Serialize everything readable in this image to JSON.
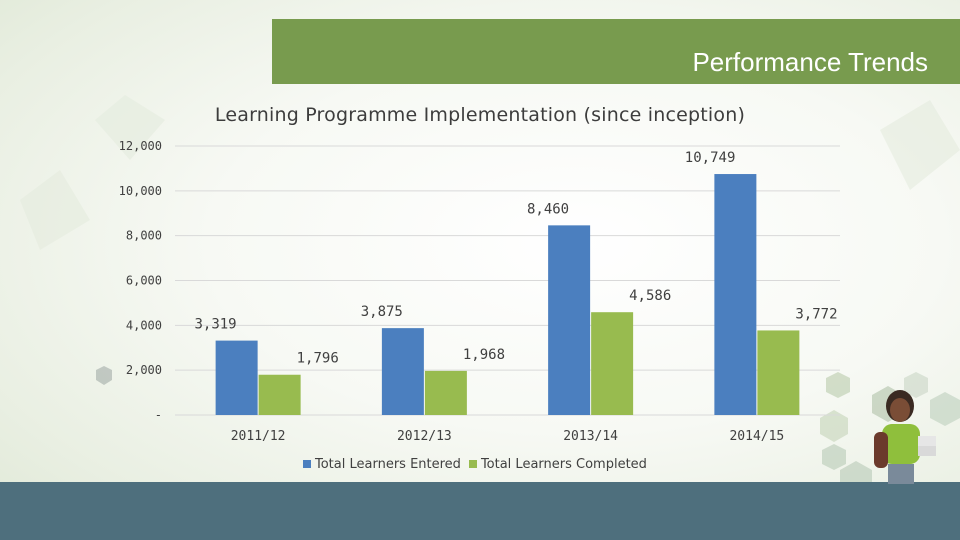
{
  "header": {
    "title": "Performance Trends"
  },
  "colors": {
    "banner": "#789b4e",
    "bottom_bar": "#4e6f7d",
    "entered": "#4b7fbf",
    "completed": "#98bb4f"
  },
  "chart_data": {
    "type": "bar",
    "title": "Learning Programme Implementation (since inception)",
    "xlabel": "",
    "ylabel": "",
    "categories": [
      "2011/12",
      "2012/13",
      "2013/14",
      "2014/15"
    ],
    "series": [
      {
        "name": "Total Learners Entered",
        "values": [
          3319,
          3875,
          8460,
          10749
        ],
        "labels": [
          "3,319",
          "3,875",
          "8,460",
          "10,749"
        ],
        "color": "#4b7fbf"
      },
      {
        "name": "Total Learners Completed",
        "values": [
          1796,
          1968,
          4586,
          3772
        ],
        "labels": [
          "1,796",
          "1,968",
          "4,586",
          "3,772"
        ],
        "color": "#98bb4f"
      }
    ],
    "ylim": [
      0,
      12000
    ],
    "yticks": [
      0,
      2000,
      4000,
      6000,
      8000,
      10000,
      12000
    ],
    "ytick_labels": [
      "-",
      "2,000",
      "4,000",
      "6,000",
      "8,000",
      "10,000",
      "12,000"
    ],
    "grid": true,
    "legend": "bottom"
  }
}
